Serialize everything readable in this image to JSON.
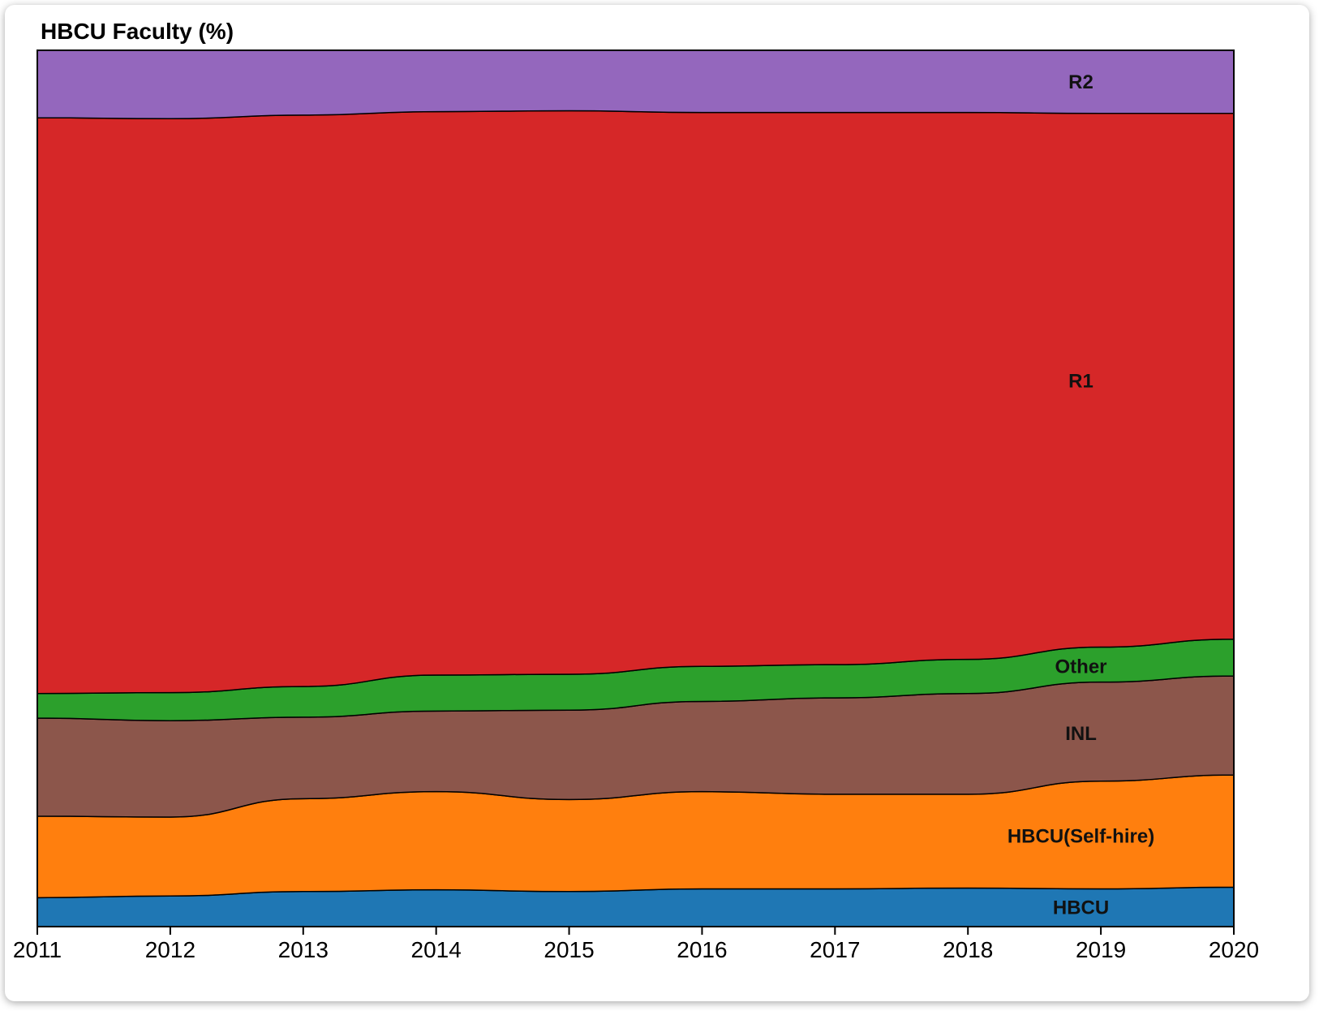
{
  "chart_data": {
    "type": "area",
    "stacked": true,
    "title": "HBCU Faculty (%)",
    "xlabel": "",
    "ylabel": "",
    "x": [
      2011,
      2012,
      2013,
      2014,
      2015,
      2016,
      2017,
      2018,
      2019,
      2020
    ],
    "ylim": [
      0,
      100
    ],
    "grid": false,
    "series": [
      {
        "name": "HBCU",
        "color": "#1f77b4",
        "values": [
          3.3,
          3.5,
          4.0,
          4.2,
          4.0,
          4.3,
          4.3,
          4.4,
          4.3,
          4.5
        ]
      },
      {
        "name": "HBCU(Self-hire)",
        "color": "#ff7f0e",
        "values": [
          9.3,
          9.0,
          10.6,
          11.2,
          10.5,
          11.1,
          10.8,
          10.7,
          12.3,
          12.8
        ]
      },
      {
        "name": "INL",
        "color": "#8c564b",
        "values": [
          11.2,
          11.0,
          9.3,
          9.2,
          10.2,
          10.3,
          11.0,
          11.5,
          11.3,
          11.3
        ]
      },
      {
        "name": "Other",
        "color": "#2ca02c",
        "values": [
          2.8,
          3.2,
          3.5,
          4.1,
          4.1,
          4.0,
          3.8,
          3.9,
          4.0,
          4.2
        ]
      },
      {
        "name": "R1",
        "color": "#d62728",
        "values": [
          65.7,
          65.5,
          65.2,
          64.3,
          64.3,
          63.2,
          63.0,
          62.4,
          60.9,
          60.0
        ]
      },
      {
        "name": "R2",
        "color": "#9467bd",
        "values": [
          7.7,
          7.8,
          7.4,
          7.0,
          6.9,
          7.1,
          7.1,
          7.1,
          7.2,
          7.2
        ]
      }
    ]
  }
}
